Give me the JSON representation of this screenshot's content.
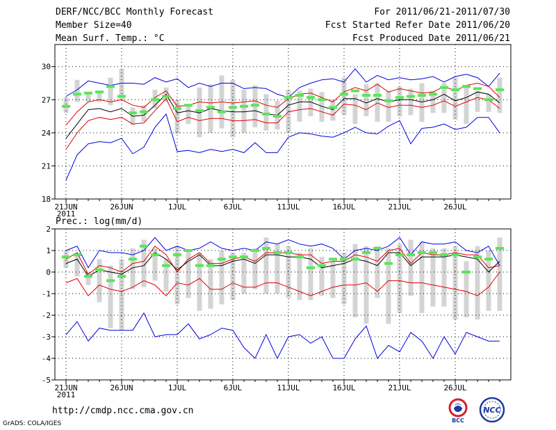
{
  "header": {
    "title": "DERF/NCC/BCC Monthly Forecast",
    "member_size": "Member Size=40",
    "variable_1": "Mean Surf. Temp.: °C",
    "forecast_range": "For 2011/06/21-2011/07/30",
    "started_date": "Fcst Started Refer Date 2011/06/20",
    "produced_date": "Fcst Produced Date 2011/06/21"
  },
  "footer": {
    "url": "http://cmdp.ncc.cma.gov.cn",
    "grads": "GrADS: COLA/IGES",
    "logo_bcc": "BCC",
    "logo_ncc": "NCC"
  },
  "colors": {
    "envelope": "#0000e0",
    "inner": "#e00000",
    "mean": "#000000",
    "box": "#d4d4d4",
    "member_mark": "#59e659"
  },
  "chart_data": [
    {
      "type": "line",
      "title": "Mean Surf. Temp.: °C",
      "xlabel": "",
      "ylabel": "",
      "x_tick_labels": [
        "21JUN",
        "26JUN",
        "1JUL",
        "6JUL",
        "11JUL",
        "16JUL",
        "21JUL",
        "26JUL"
      ],
      "x_tick_days": [
        1,
        6,
        11,
        16,
        21,
        26,
        31,
        36
      ],
      "year_label": "2011",
      "ylim": [
        18,
        32
      ],
      "y_ticks": [
        18,
        21,
        24,
        27,
        30
      ],
      "grid": true,
      "series": [
        {
          "name": "max",
          "color": "envelope",
          "values": [
            27.3,
            27.9,
            28.7,
            28.5,
            28.3,
            28.5,
            28.5,
            28.4,
            29.0,
            28.6,
            28.9,
            28.1,
            28.5,
            28.2,
            28.5,
            28.5,
            28.0,
            28.1,
            28.0,
            27.5,
            27.2,
            28.1,
            28.5,
            28.8,
            28.9,
            28.6,
            29.8,
            28.6,
            29.2,
            28.8,
            29.0,
            28.8,
            28.9,
            29.1,
            28.6,
            29.1,
            29.3,
            29.0,
            28.2,
            29.4
          ]
        },
        {
          "name": "upper",
          "color": "inner",
          "values": [
            24.7,
            25.9,
            26.8,
            27.0,
            26.8,
            27.0,
            26.5,
            26.3,
            27.2,
            27.8,
            26.4,
            26.5,
            26.8,
            26.7,
            26.8,
            26.7,
            26.8,
            26.9,
            26.5,
            26.3,
            27.1,
            27.5,
            27.6,
            27.2,
            26.8,
            27.7,
            28.1,
            27.8,
            28.4,
            27.7,
            28.0,
            27.8,
            27.6,
            27.7,
            28.2,
            27.8,
            28.3,
            28.5,
            28.2,
            27.2
          ]
        },
        {
          "name": "mean",
          "color": "mean",
          "values": [
            23.5,
            24.8,
            26.1,
            26.2,
            25.9,
            26.2,
            25.5,
            25.6,
            26.5,
            27.5,
            25.8,
            26.0,
            25.8,
            26.2,
            26.0,
            25.9,
            25.9,
            26.0,
            25.7,
            25.6,
            26.5,
            26.8,
            26.8,
            26.4,
            26.1,
            27.1,
            27.1,
            26.7,
            27.1,
            26.8,
            27.0,
            27.0,
            26.8,
            27.0,
            27.5,
            26.9,
            27.2,
            27.7,
            27.5,
            26.7
          ]
        },
        {
          "name": "lower",
          "color": "inner",
          "values": [
            22.5,
            24.0,
            25.1,
            25.4,
            25.2,
            25.4,
            24.8,
            24.9,
            26.0,
            27.1,
            25.0,
            25.4,
            25.1,
            25.3,
            25.3,
            25.1,
            25.1,
            25.2,
            24.9,
            24.9,
            25.9,
            26.1,
            26.2,
            25.9,
            25.6,
            26.6,
            26.5,
            26.1,
            26.7,
            26.3,
            26.5,
            26.5,
            26.3,
            26.5,
            26.9,
            26.4,
            26.8,
            27.2,
            27.0,
            26.2
          ]
        },
        {
          "name": "min",
          "color": "envelope",
          "values": [
            19.7,
            22.0,
            23.0,
            23.2,
            23.1,
            23.5,
            22.1,
            22.7,
            24.5,
            25.7,
            22.3,
            22.4,
            22.2,
            22.5,
            22.3,
            22.5,
            22.2,
            23.1,
            22.2,
            22.2,
            23.6,
            24.0,
            23.9,
            23.7,
            23.6,
            24.0,
            24.5,
            24.0,
            23.9,
            24.6,
            25.1,
            23.0,
            24.4,
            24.5,
            24.8,
            24.3,
            24.5,
            25.4,
            25.4,
            24.0
          ]
        }
      ],
      "boxes": {
        "low": [
          25.8,
          26.8,
          26.8,
          26.8,
          26.5,
          27.0,
          24.7,
          25.0,
          26.2,
          26.8,
          23.9,
          24.8,
          23.6,
          24.0,
          24.4,
          23.6,
          24.0,
          24.5,
          24.2,
          24.3,
          24.0,
          25.0,
          25.5,
          25.0,
          25.1,
          25.6,
          24.8,
          25.5,
          25.0,
          25.0,
          25.5,
          25.6,
          25.0,
          25.8,
          25.8,
          25.2,
          24.8,
          25.9,
          25.9,
          25.8
        ],
        "high": [
          27.2,
          28.8,
          27.7,
          27.8,
          29.0,
          29.8,
          26.3,
          26.5,
          27.9,
          28.1,
          27.0,
          26.5,
          28.1,
          28.4,
          29.2,
          28.8,
          27.9,
          28.3,
          27.5,
          26.9,
          27.9,
          27.8,
          28.0,
          27.7,
          27.0,
          29.0,
          27.5,
          28.4,
          28.5,
          27.8,
          28.2,
          28.0,
          28.5,
          27.8,
          28.5,
          29.0,
          28.3,
          27.8,
          27.5,
          29.0
        ]
      },
      "marks": [
        26.4,
        27.5,
        27.6,
        27.7,
        28.2,
        27.3,
        25.8,
        25.9,
        27.0,
        27.3,
        26.2,
        26.5,
        26.0,
        26.3,
        25.9,
        26.3,
        26.4,
        26.5,
        25.7,
        25.5,
        27.2,
        27.4,
        27.2,
        27.0,
        26.3,
        27.5,
        27.8,
        27.4,
        27.4,
        26.9,
        27.2,
        27.3,
        27.4,
        27.5,
        28.1,
        27.9,
        28.2,
        28.0,
        27.0,
        27.9
      ]
    },
    {
      "type": "line",
      "title": "Prec.: log(mm/d)",
      "xlabel": "",
      "ylabel": "",
      "x_tick_labels": [
        "21JUN",
        "26JUN",
        "1JUL",
        "6JUL",
        "11JUL",
        "16JUL",
        "21JUL",
        "26JUL"
      ],
      "x_tick_days": [
        1,
        6,
        11,
        16,
        21,
        26,
        31,
        36
      ],
      "year_label": "2011",
      "ylim": [
        -5,
        2
      ],
      "y_ticks": [
        -5,
        -4,
        -3,
        -2,
        -1,
        0,
        1,
        2
      ],
      "grid": true,
      "series": [
        {
          "name": "max",
          "color": "envelope",
          "values": [
            1.0,
            1.2,
            0.2,
            1.0,
            0.9,
            0.9,
            0.8,
            1.0,
            1.6,
            1.0,
            1.2,
            1.0,
            1.1,
            1.4,
            1.1,
            1.0,
            1.1,
            1.0,
            1.4,
            1.3,
            1.5,
            1.3,
            1.2,
            1.3,
            1.1,
            0.6,
            1.0,
            1.1,
            1.0,
            1.2,
            1.6,
            0.8,
            1.4,
            1.3,
            1.3,
            1.4,
            1.0,
            0.9,
            1.2,
            0.3
          ]
        },
        {
          "name": "upper",
          "color": "inner",
          "values": [
            0.6,
            0.9,
            -0.1,
            0.3,
            0.2,
            0.0,
            0.4,
            0.5,
            1.2,
            0.8,
            0.0,
            0.6,
            0.9,
            0.4,
            0.4,
            0.6,
            0.7,
            0.5,
            0.9,
            0.9,
            0.9,
            0.8,
            0.8,
            0.4,
            0.5,
            0.5,
            0.8,
            0.7,
            0.5,
            1.0,
            1.1,
            0.4,
            0.9,
            0.8,
            0.8,
            0.9,
            0.8,
            0.8,
            0.2,
            0.3
          ]
        },
        {
          "name": "mean",
          "color": "mean",
          "values": [
            0.4,
            0.6,
            -0.2,
            0.1,
            0.0,
            -0.1,
            0.2,
            0.3,
            0.9,
            0.6,
            0.1,
            0.5,
            0.8,
            0.3,
            0.3,
            0.5,
            0.6,
            0.4,
            0.8,
            0.8,
            0.7,
            0.7,
            0.6,
            0.2,
            0.3,
            0.4,
            0.6,
            0.5,
            0.3,
            0.9,
            0.9,
            0.3,
            0.7,
            0.7,
            0.7,
            0.8,
            0.7,
            0.6,
            0.0,
            0.5
          ]
        },
        {
          "name": "lower",
          "color": "inner",
          "values": [
            -0.5,
            -0.3,
            -1.1,
            -0.6,
            -0.8,
            -0.9,
            -0.7,
            -0.4,
            -0.6,
            -1.1,
            -0.5,
            -0.6,
            -0.3,
            -0.8,
            -0.8,
            -0.5,
            -0.7,
            -0.7,
            -0.5,
            -0.5,
            -0.7,
            -0.9,
            -1.1,
            -0.9,
            -0.7,
            -0.6,
            -0.6,
            -0.5,
            -0.9,
            -0.4,
            -0.4,
            -0.5,
            -0.5,
            -0.6,
            -0.7,
            -0.8,
            -0.9,
            -1.1,
            -0.7,
            0.0
          ]
        },
        {
          "name": "min",
          "color": "envelope",
          "values": [
            -2.9,
            -2.3,
            -3.2,
            -2.6,
            -2.7,
            -2.7,
            -2.7,
            -1.9,
            -3.0,
            -2.9,
            -2.9,
            -2.4,
            -3.1,
            -2.9,
            -2.6,
            -2.7,
            -3.5,
            -4.0,
            -2.9,
            -4.0,
            -3.0,
            -2.9,
            -3.3,
            -3.0,
            -4.0,
            -4.0,
            -3.1,
            -2.5,
            -4.0,
            -3.4,
            -3.7,
            -2.8,
            -3.2,
            -4.0,
            -3.0,
            -3.8,
            -2.8,
            -3.0,
            -3.2,
            -3.2
          ]
        }
      ],
      "boxes": {
        "low": [
          0.2,
          -0.2,
          -0.6,
          -1.4,
          -2.6,
          -2.7,
          -0.8,
          -0.7,
          -0.4,
          -0.9,
          -1.5,
          -1.2,
          -1.8,
          -1.7,
          -1.5,
          -1.3,
          -1.0,
          -0.8,
          -1.0,
          -1.0,
          -1.2,
          -1.3,
          -1.3,
          -1.1,
          -1.2,
          -1.5,
          -2.1,
          -2.4,
          -1.2,
          -2.4,
          -1.9,
          -1.1,
          -1.9,
          -1.6,
          -1.6,
          -2.2,
          -2.1,
          -2.2,
          -1.8,
          -1.8
        ],
        "high": [
          1.0,
          0.9,
          0.0,
          0.6,
          0.3,
          0.6,
          1.1,
          1.5,
          1.1,
          0.6,
          1.2,
          1.0,
          0.9,
          0.6,
          1.0,
          0.9,
          0.9,
          1.1,
          1.6,
          1.3,
          1.2,
          0.9,
          1.1,
          0.7,
          0.5,
          0.9,
          1.3,
          1.2,
          1.2,
          1.1,
          1.3,
          1.5,
          1.4,
          1.1,
          1.1,
          1.2,
          0.5,
          1.2,
          1.0,
          1.6
        ]
      },
      "marks": [
        0.7,
        0.8,
        -0.2,
        0.1,
        -0.4,
        -0.2,
        0.6,
        1.2,
        0.8,
        0.3,
        0.8,
        1.0,
        0.3,
        0.3,
        0.6,
        0.7,
        0.7,
        1.0,
        1.1,
        0.9,
        0.9,
        0.7,
        0.2,
        0.3,
        0.6,
        0.6,
        0.6,
        0.9,
        1.1,
        0.4,
        0.8,
        0.8,
        0.9,
        0.9,
        0.8,
        0.8,
        0.0,
        0.7,
        0.6,
        1.1
      ]
    }
  ]
}
